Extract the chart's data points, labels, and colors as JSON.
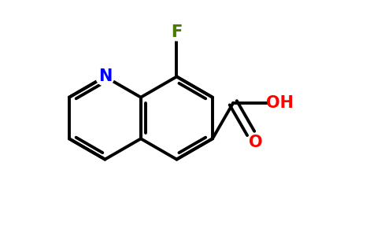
{
  "bg_color": "#ffffff",
  "bond_color": "#000000",
  "bond_width": 2.8,
  "N_color": "#0000ff",
  "F_color": "#4a7c00",
  "O_color": "#ff0000",
  "figsize": [
    4.84,
    3.0
  ],
  "dpi": 100,
  "xlim": [
    -2.8,
    5.2
  ],
  "ylim": [
    -2.8,
    2.8
  ]
}
